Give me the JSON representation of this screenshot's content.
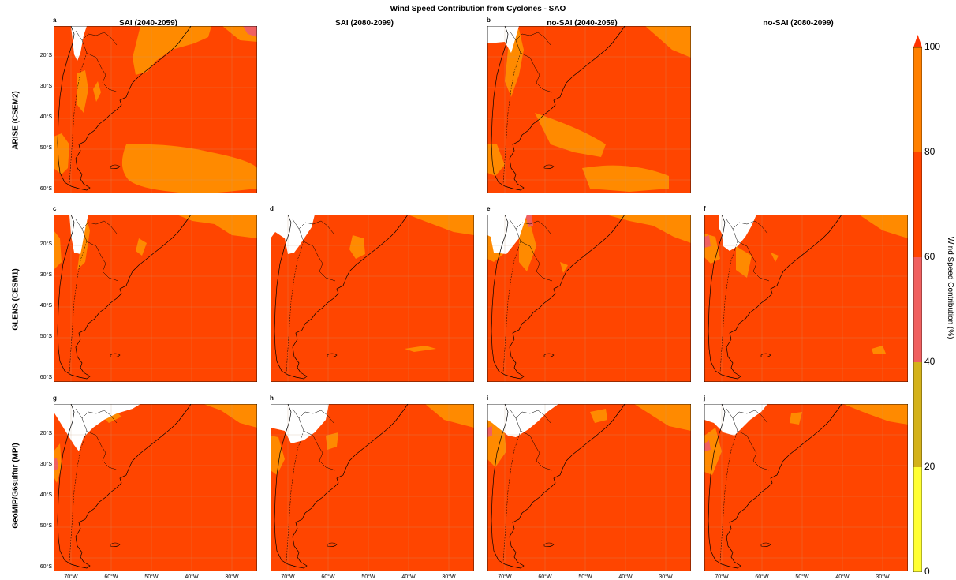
{
  "title": "Wind Speed Contribution from Cyclones - SAO",
  "columns": [
    "SAI (2040-2059)",
    "SAI (2080-2099)",
    "no-SAI (2040-2059)",
    "no-SAI (2080-2099)"
  ],
  "rows": [
    "ARISE (CSEM2)",
    "GLENS (CESM1)",
    "GeoMIP/G6sulfur (MPI)"
  ],
  "panel_letters": {
    "a": "a",
    "b": "b",
    "c": "c",
    "d": "d",
    "e": "e",
    "f": "f",
    "g": "g",
    "h": "h",
    "i": "i",
    "j": "j"
  },
  "lat_ticks": [
    "20°S",
    "30°S",
    "40°S",
    "50°S",
    "60°S"
  ],
  "lon_ticks": [
    "70°W",
    "60°W",
    "50°W",
    "40°W",
    "30°W"
  ],
  "colorbar": {
    "label": "Wind Speed Contribution (%)",
    "ticks": [
      "0",
      "20",
      "40",
      "60",
      "80",
      "100"
    ],
    "bins": [
      {
        "from": 0,
        "to": 20,
        "color": "#ffff33"
      },
      {
        "from": 20,
        "to": 40,
        "color": "#d4b21a"
      },
      {
        "from": 40,
        "to": 60,
        "color": "#f06060"
      },
      {
        "from": 60,
        "to": 80,
        "color": "#ff4500"
      },
      {
        "from": 80,
        "to": 100,
        "color": "#ff8000"
      }
    ],
    "extend_color": "#ff3300"
  },
  "colors": {
    "base": "#ff4500",
    "orange": "#ff8a00",
    "dark_orange": "#ff6a00",
    "pink": "#f06060",
    "land_blank": "#ffffff",
    "grid": "#c8a080"
  }
}
